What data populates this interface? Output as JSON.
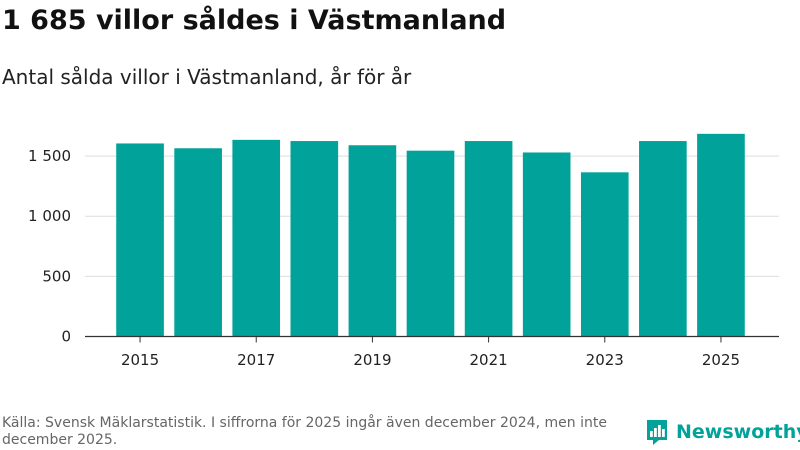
{
  "title": "1 685 villor såldes i Västmanland",
  "subtitle": "Antal sålda villor i Västmanland, år för år",
  "source": "Källa: Svensk Mäklarstatistik. I siffrorna för 2025 ingår även december 2024, men inte december 2025.",
  "brand": {
    "name": "Newsworthy",
    "color": "#00a29a",
    "logo_icon": "bar-chart-logo-icon"
  },
  "chart_data": {
    "type": "bar",
    "title": "1 685 villor såldes i Västmanland",
    "subtitle": "Antal sålda villor i Västmanland, år för år",
    "xlabel": "",
    "ylabel": "",
    "categories": [
      "2015",
      "2016",
      "2017",
      "2018",
      "2019",
      "2020",
      "2021",
      "2022",
      "2023",
      "2024",
      "2025"
    ],
    "values": [
      1605,
      1565,
      1635,
      1625,
      1590,
      1545,
      1625,
      1530,
      1365,
      1625,
      1685
    ],
    "ylim": [
      0,
      1800
    ],
    "yticks": [
      0,
      500,
      1000,
      1500
    ],
    "ytick_labels": [
      "0",
      "500",
      "1 000",
      "1 500"
    ],
    "xtick_labels": [
      "2015",
      "",
      "2017",
      "",
      "2019",
      "",
      "2021",
      "",
      "2023",
      "",
      "2025"
    ],
    "grid": true,
    "bar_color": "#00a29a",
    "legend": "none"
  }
}
